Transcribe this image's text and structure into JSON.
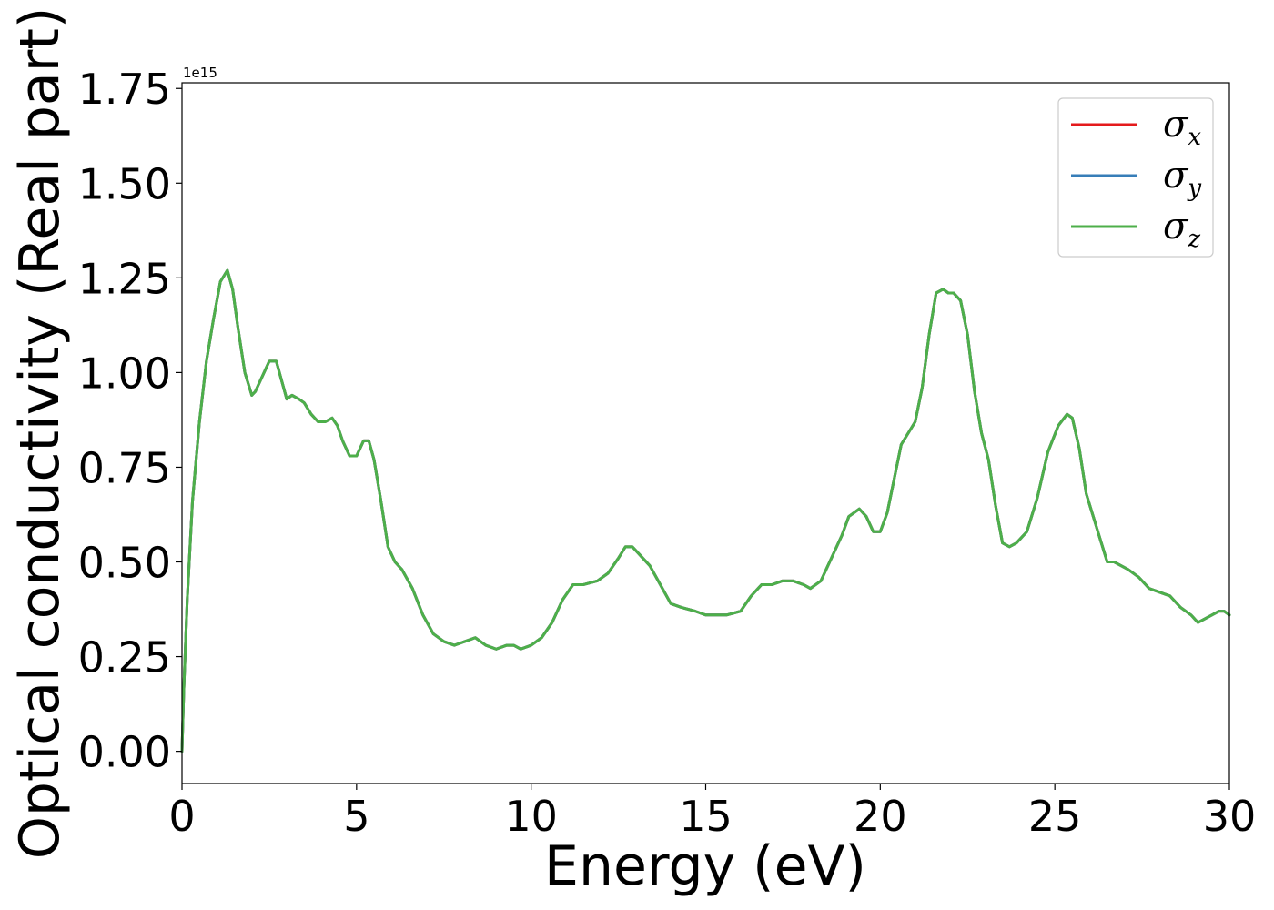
{
  "chart_data": {
    "type": "line",
    "xlabel": "Energy (eV)",
    "ylabel": "Optical conductivity (Real part)",
    "y_offset_text": "1e15",
    "y_scale_factor": 1000000000000000.0,
    "xlim": [
      0,
      30
    ],
    "ylim": [
      -0.085,
      1.765
    ],
    "xticks": [
      0,
      5,
      10,
      15,
      20,
      25,
      30
    ],
    "xtick_labels": [
      "0",
      "5",
      "10",
      "15",
      "20",
      "25",
      "30"
    ],
    "yticks": [
      0.0,
      0.25,
      0.5,
      0.75,
      1.0,
      1.25,
      1.5,
      1.75
    ],
    "ytick_labels": [
      "0.00",
      "0.25",
      "0.50",
      "0.75",
      "1.00",
      "1.25",
      "1.50",
      "1.75"
    ],
    "grid": false,
    "legend_position": "top-right",
    "series": [
      {
        "name": "σx",
        "legend_base": "σ",
        "legend_sub": "x",
        "color": "#e41a1c"
      },
      {
        "name": "σy",
        "legend_base": "σ",
        "legend_sub": "y",
        "color": "#377eb8"
      },
      {
        "name": "σz",
        "legend_base": "σ",
        "legend_sub": "z",
        "color": "#4daf4a"
      }
    ],
    "x": [
      0,
      0.05,
      0.15,
      0.3,
      0.5,
      0.7,
      0.9,
      1.1,
      1.3,
      1.45,
      1.6,
      1.8,
      2.0,
      2.1,
      2.3,
      2.5,
      2.7,
      2.85,
      3.0,
      3.15,
      3.35,
      3.5,
      3.7,
      3.9,
      4.1,
      4.3,
      4.45,
      4.6,
      4.8,
      5.0,
      5.2,
      5.35,
      5.5,
      5.7,
      5.9,
      6.1,
      6.3,
      6.6,
      6.9,
      7.2,
      7.5,
      7.8,
      8.1,
      8.4,
      8.7,
      9.0,
      9.3,
      9.5,
      9.7,
      10.0,
      10.3,
      10.6,
      10.9,
      11.2,
      11.5,
      11.9,
      12.2,
      12.5,
      12.7,
      12.9,
      13.1,
      13.4,
      13.7,
      14.0,
      14.3,
      14.7,
      15.0,
      15.3,
      15.6,
      16.0,
      16.3,
      16.6,
      16.9,
      17.2,
      17.5,
      17.8,
      18.0,
      18.3,
      18.6,
      18.9,
      19.1,
      19.4,
      19.6,
      19.8,
      20.0,
      20.2,
      20.4,
      20.6,
      20.8,
      21.0,
      21.2,
      21.4,
      21.6,
      21.8,
      21.95,
      22.1,
      22.3,
      22.5,
      22.7,
      22.9,
      23.1,
      23.3,
      23.5,
      23.7,
      23.9,
      24.2,
      24.5,
      24.8,
      25.1,
      25.35,
      25.5,
      25.7,
      25.9,
      26.1,
      26.3,
      26.5,
      26.7,
      26.9,
      27.1,
      27.4,
      27.7,
      28.0,
      28.3,
      28.6,
      28.9,
      29.1,
      29.3,
      29.5,
      29.7,
      29.85,
      30.0
    ],
    "y": [
      0.0,
      0.16,
      0.4,
      0.66,
      0.87,
      1.03,
      1.14,
      1.24,
      1.27,
      1.22,
      1.12,
      1.0,
      0.94,
      0.95,
      0.99,
      1.03,
      1.03,
      0.98,
      0.93,
      0.94,
      0.93,
      0.92,
      0.89,
      0.87,
      0.87,
      0.88,
      0.86,
      0.82,
      0.78,
      0.78,
      0.82,
      0.82,
      0.77,
      0.66,
      0.54,
      0.5,
      0.48,
      0.43,
      0.36,
      0.31,
      0.29,
      0.28,
      0.29,
      0.3,
      0.28,
      0.27,
      0.28,
      0.28,
      0.27,
      0.28,
      0.3,
      0.34,
      0.4,
      0.44,
      0.44,
      0.45,
      0.47,
      0.51,
      0.54,
      0.54,
      0.52,
      0.49,
      0.44,
      0.39,
      0.38,
      0.37,
      0.36,
      0.36,
      0.36,
      0.37,
      0.41,
      0.44,
      0.44,
      0.45,
      0.45,
      0.44,
      0.43,
      0.45,
      0.51,
      0.57,
      0.62,
      0.64,
      0.62,
      0.58,
      0.58,
      0.63,
      0.72,
      0.81,
      0.84,
      0.87,
      0.96,
      1.1,
      1.21,
      1.22,
      1.21,
      1.21,
      1.19,
      1.1,
      0.95,
      0.84,
      0.77,
      0.65,
      0.55,
      0.54,
      0.55,
      0.58,
      0.67,
      0.79,
      0.86,
      0.89,
      0.88,
      0.8,
      0.68,
      0.62,
      0.56,
      0.5,
      0.5,
      0.49,
      0.48,
      0.46,
      0.43,
      0.42,
      0.41,
      0.38,
      0.36,
      0.34,
      0.35,
      0.36,
      0.37,
      0.37,
      0.36
    ]
  }
}
